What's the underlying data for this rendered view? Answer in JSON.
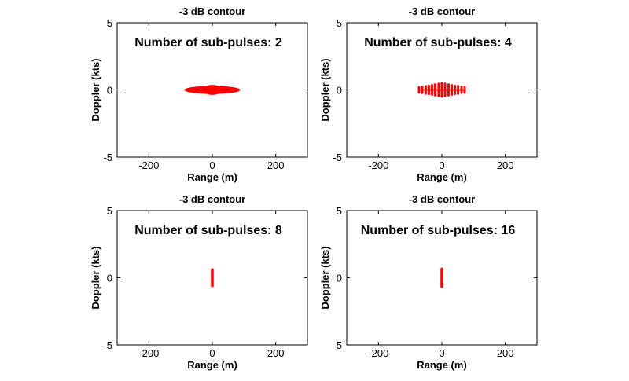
{
  "chart_data": [
    {
      "type": "scatter",
      "title": "-3 dB contour",
      "annotation": "Number of sub-pulses: 2",
      "xlabel": "Range (m)",
      "ylabel": "Doppler (kts)",
      "xlim": [
        -300,
        300
      ],
      "ylim": [
        -5,
        5
      ],
      "xticks": [
        "-200",
        "0",
        "200"
      ],
      "yticks": [
        "5",
        "0",
        "-5"
      ],
      "grid": false,
      "series": [
        {
          "color": "#ff0000",
          "shape": "ellipse",
          "x": [
            -88,
            88
          ],
          "y": [
            -0.3,
            0.3
          ]
        }
      ]
    },
    {
      "type": "scatter",
      "title": "-3 dB contour",
      "annotation": "Number of sub-pulses: 4",
      "xlabel": "Range (m)",
      "ylabel": "Doppler (kts)",
      "xlim": [
        -300,
        300
      ],
      "ylim": [
        -5,
        5
      ],
      "xticks": [
        "-200",
        "0",
        "200"
      ],
      "yticks": [
        "5",
        "0",
        "-5"
      ],
      "grid": false,
      "series": [
        {
          "color": "#ff0000",
          "shape": "comb",
          "x": [
            -72,
            -62,
            -51,
            -41,
            -31,
            -21,
            -10,
            0,
            10,
            21,
            31,
            41,
            51,
            62,
            72
          ],
          "half_height": [
            0.2,
            0.22,
            0.28,
            0.3,
            0.35,
            0.4,
            0.45,
            0.5,
            0.45,
            0.4,
            0.35,
            0.3,
            0.28,
            0.22,
            0.2
          ]
        }
      ]
    },
    {
      "type": "scatter",
      "title": "-3 dB contour",
      "annotation": "Number of sub-pulses: 8",
      "xlabel": "Range (m)",
      "ylabel": "Doppler (kts)",
      "xlim": [
        -300,
        300
      ],
      "ylim": [
        -5,
        5
      ],
      "xticks": [
        "-200",
        "0",
        "200"
      ],
      "yticks": [
        "5",
        "0",
        "-5"
      ],
      "grid": false,
      "series": [
        {
          "color": "#ff0000",
          "shape": "vline",
          "x": [
            0,
            0
          ],
          "y": [
            -0.6,
            0.6
          ]
        }
      ]
    },
    {
      "type": "scatter",
      "title": "-3 dB contour",
      "annotation": "Number of sub-pulses: 16",
      "xlabel": "Range (m)",
      "ylabel": "Doppler (kts)",
      "xlim": [
        -300,
        300
      ],
      "ylim": [
        -5,
        5
      ],
      "xticks": [
        "-200",
        "0",
        "200"
      ],
      "yticks": [
        "5",
        "0",
        "-5"
      ],
      "grid": false,
      "series": [
        {
          "color": "#ff0000",
          "shape": "vline",
          "x": [
            0,
            0
          ],
          "y": [
            -0.65,
            0.65
          ]
        }
      ]
    }
  ]
}
